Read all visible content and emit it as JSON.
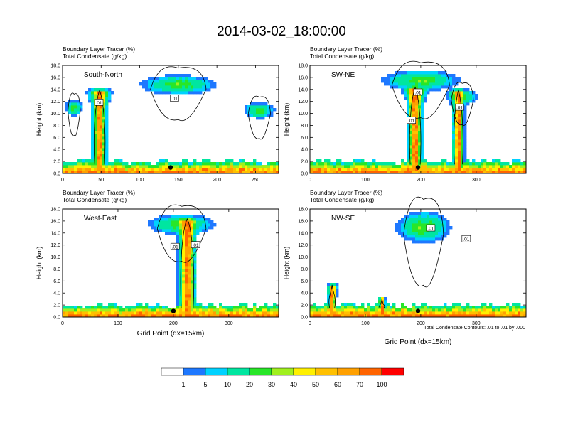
{
  "title": "2014-03-02_18:00:00",
  "footnote": "Total Condensate Contours: .01 to .01 by .000",
  "colorbar": {
    "labels": [
      "1",
      "5",
      "10",
      "20",
      "30",
      "40",
      "50",
      "60",
      "70",
      "100"
    ],
    "colors": [
      "#ffffff",
      "#1e78ff",
      "#00d2ff",
      "#00e6a0",
      "#28e628",
      "#a0f01e",
      "#fff000",
      "#ffc000",
      "#ffa000",
      "#ff6400",
      "#ff0000"
    ]
  },
  "chart_data": [
    {
      "type": "heatmap",
      "panel": "South-North",
      "title_lines": [
        "Boundary Layer Tracer   (%)",
        "Total Condensate   (g/kg)"
      ],
      "ylabel": "Height (km)",
      "xlabel": "",
      "xlim": [
        0,
        280
      ],
      "ylim": [
        0,
        18
      ],
      "xticks": [
        "0",
        "50",
        "100",
        "150",
        "200",
        "250"
      ],
      "xtick_values": [
        0,
        50,
        100,
        150,
        200,
        250
      ],
      "yticks": [
        "0.0",
        "2.0",
        "4.0",
        "6.0",
        "8.0",
        "10.0",
        "12.0",
        "14.0",
        "16.0",
        "18.0"
      ],
      "contour_labels": [
        {
          "text": ".01",
          "x": 47,
          "y": 11.8
        },
        {
          "text": ".01",
          "x": 145,
          "y": 12.5
        }
      ],
      "marker": {
        "x": 140,
        "y": 1.0
      },
      "features": [
        {
          "kind": "column",
          "x": 48,
          "half_width": 7,
          "top": 13.5,
          "anvil_spread": 5
        },
        {
          "kind": "anvil",
          "x": 150,
          "z": 14.8,
          "half_width": 45,
          "thickness": 1.5
        },
        {
          "kind": "anvil",
          "x": 255,
          "z": 10.5,
          "half_width": 18,
          "thickness": 1.2
        },
        {
          "kind": "anvil",
          "x": 15,
          "z": 11.0,
          "half_width": 10,
          "thickness": 1.2
        }
      ]
    },
    {
      "type": "heatmap",
      "panel": "SW-NE",
      "title_lines": [
        "Boundary Layer Tracer   (%)",
        "Total Condensate   (g/kg)"
      ],
      "ylabel": "Height (km)",
      "xlabel": "",
      "xlim": [
        0,
        390
      ],
      "ylim": [
        0,
        18
      ],
      "xticks": [
        "0",
        "100",
        "200",
        "300"
      ],
      "xtick_values": [
        0,
        100,
        200,
        300
      ],
      "yticks": [
        "0.0",
        "2.0",
        "4.0",
        "6.0",
        "8.0",
        "10.0",
        "12.0",
        "14.0",
        "16.0",
        "18.0"
      ],
      "contour_labels": [
        {
          "text": ".01",
          "x": 195,
          "y": 13.5
        },
        {
          "text": ".01",
          "x": 183,
          "y": 8.8
        },
        {
          "text": ".01",
          "x": 270,
          "y": 11.0
        }
      ],
      "marker": {
        "x": 195,
        "y": 1.0
      },
      "features": [
        {
          "kind": "column",
          "x": 190,
          "half_width": 10,
          "top": 14.0,
          "anvil_spread": 8
        },
        {
          "kind": "column",
          "x": 268,
          "half_width": 8,
          "top": 13.5,
          "anvil_spread": 6
        },
        {
          "kind": "anvil",
          "x": 200,
          "z": 15.5,
          "half_width": 65,
          "thickness": 1.6
        },
        {
          "kind": "anvil",
          "x": 275,
          "z": 12.8,
          "half_width": 25,
          "thickness": 1.2
        }
      ]
    },
    {
      "type": "heatmap",
      "panel": "West-East",
      "title_lines": [
        "Boundary Layer Tracer   (%)",
        "Total Condensate   (g/kg)"
      ],
      "ylabel": "Height (km)",
      "xlabel": "Grid Point (dx=15km)",
      "xlim": [
        0,
        390
      ],
      "ylim": [
        0,
        18
      ],
      "xticks": [
        "0",
        "100",
        "200",
        "300"
      ],
      "xtick_values": [
        0,
        100,
        200,
        300
      ],
      "yticks": [
        "0.0",
        "2.0",
        "4.0",
        "6.0",
        "8.0",
        "10.0",
        "12.0",
        "14.0",
        "16.0",
        "18.0"
      ],
      "contour_labels": [
        {
          "text": ".01",
          "x": 203,
          "y": 11.7
        },
        {
          "text": ".01",
          "x": 240,
          "y": 12.0
        }
      ],
      "marker": {
        "x": 200,
        "y": 1.0
      },
      "features": [
        {
          "kind": "column",
          "x": 225,
          "half_width": 12,
          "top": 16.0,
          "anvil_spread": 10
        },
        {
          "kind": "anvil",
          "x": 215,
          "z": 15.5,
          "half_width": 55,
          "thickness": 1.6
        }
      ]
    },
    {
      "type": "heatmap",
      "panel": "NW-SE",
      "title_lines": [
        "Boundary Layer Tracer   (%)",
        "Total Condensate   (g/kg)"
      ],
      "ylabel": "Height (km)",
      "xlabel": "Grid Point (dx=15km)",
      "xlim": [
        0,
        390
      ],
      "ylim": [
        0,
        18
      ],
      "xticks": [
        "0",
        "100",
        "200",
        "300"
      ],
      "xtick_values": [
        0,
        100,
        200,
        300
      ],
      "yticks": [
        "0.0",
        "2.0",
        "4.0",
        "6.0",
        "8.0",
        "10.0",
        "12.0",
        "14.0",
        "16.0",
        "18.0"
      ],
      "contour_labels": [
        {
          "text": ".01",
          "x": 218,
          "y": 14.8
        },
        {
          "text": ".01",
          "x": 282,
          "y": 13.0
        }
      ],
      "marker": {
        "x": 195,
        "y": 1.0
      },
      "features": [
        {
          "kind": "anvil",
          "x": 205,
          "z": 15.0,
          "half_width": 45,
          "thickness": 2.5
        },
        {
          "kind": "column",
          "x": 40,
          "half_width": 5,
          "top": 5.0,
          "anvil_spread": 2
        },
        {
          "kind": "column",
          "x": 130,
          "half_width": 4,
          "top": 2.8,
          "anvil_spread": 1
        }
      ]
    }
  ]
}
